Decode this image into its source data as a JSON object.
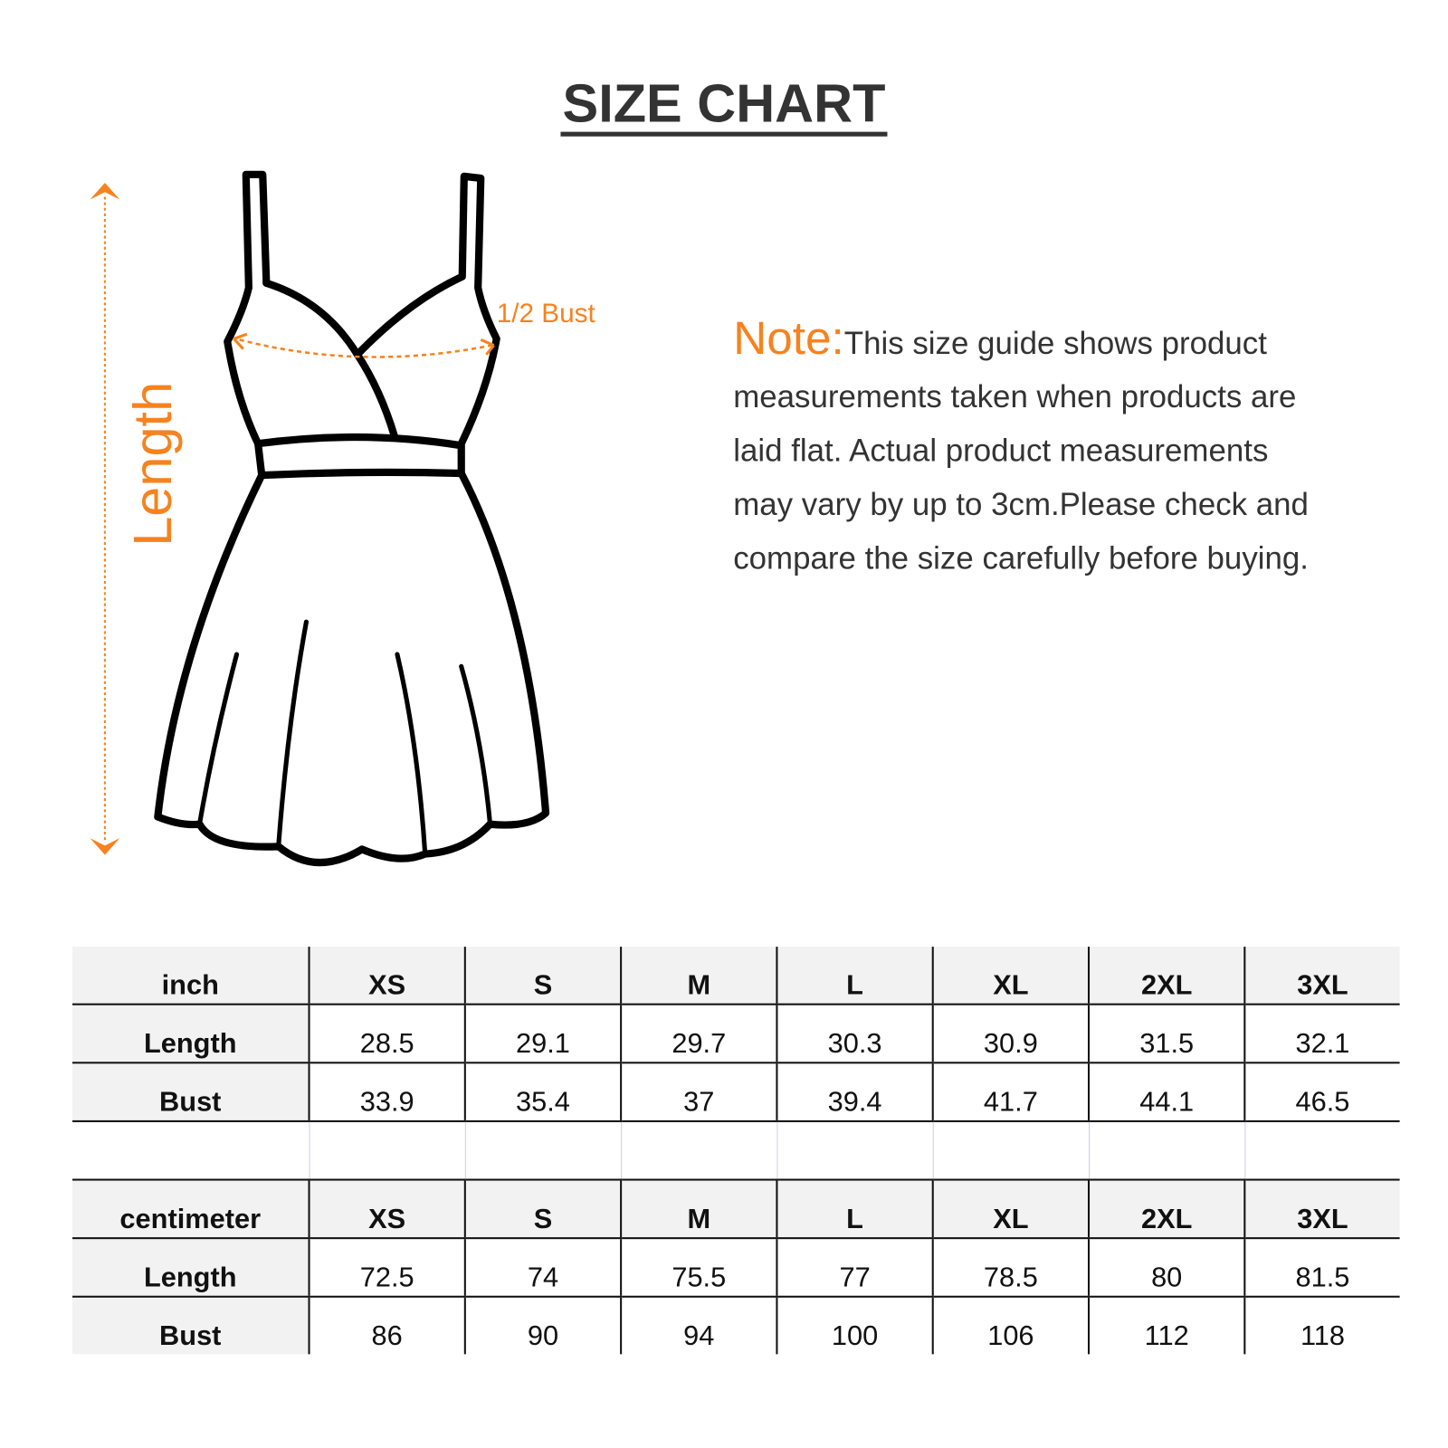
{
  "title": "SIZE CHART",
  "accent_color": "#f7821e",
  "diagram": {
    "length_label": "Length",
    "bust_label": "1/2 Bust"
  },
  "note": {
    "lead": "Note:",
    "lines": [
      "This size guide shows product",
      "measurements taken when products are",
      "laid flat. Actual product measurements",
      "may vary by up to 3cm.Please check and",
      "compare the size carefully before buying."
    ]
  },
  "inch_table": {
    "headers": [
      "inch",
      "XS",
      "S",
      "M",
      "L",
      "XL",
      "2XL",
      "3XL"
    ],
    "rows": [
      [
        "Length",
        "28.5",
        "29.1",
        "29.7",
        "30.3",
        "30.9",
        "31.5",
        "32.1"
      ],
      [
        "Bust",
        "33.9",
        "35.4",
        "37",
        "39.4",
        "41.7",
        "44.1",
        "46.5"
      ]
    ]
  },
  "cm_table": {
    "headers": [
      "centimeter",
      "XS",
      "S",
      "M",
      "L",
      "XL",
      "2XL",
      "3XL"
    ],
    "rows": [
      [
        "Length",
        "72.5",
        "74",
        "75.5",
        "77",
        "78.5",
        "80",
        "81.5"
      ],
      [
        "Bust",
        "86",
        "90",
        "94",
        "100",
        "106",
        "112",
        "118"
      ]
    ]
  }
}
